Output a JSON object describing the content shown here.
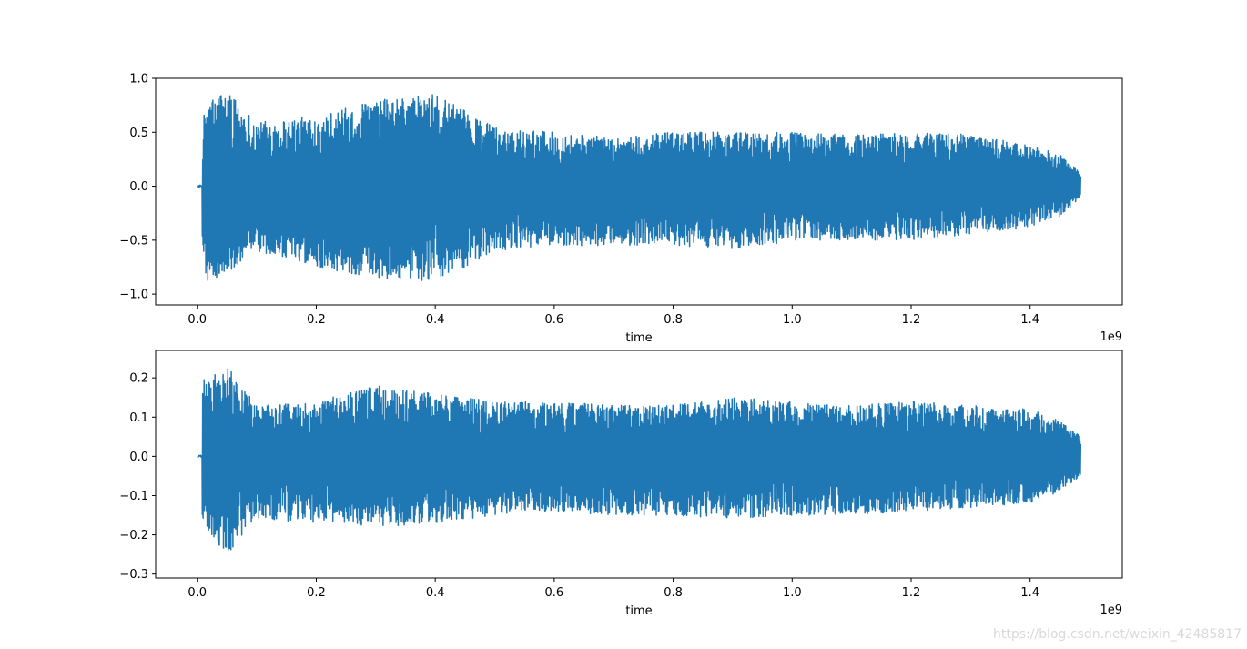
{
  "chart_data": [
    {
      "type": "line",
      "title": "",
      "xlabel": "time",
      "ylabel": "",
      "x_offset_label": "1e9",
      "xlim": [
        -0.07,
        1.555
      ],
      "ylim": [
        -1.1,
        1.0
      ],
      "x_ticks": [
        0.0,
        0.2,
        0.4,
        0.6,
        0.8,
        1.0,
        1.2,
        1.4
      ],
      "x_tick_labels": [
        "0.0",
        "0.2",
        "0.4",
        "0.6",
        "0.8",
        "1.0",
        "1.2",
        "1.4"
      ],
      "y_ticks": [
        -1.0,
        -0.5,
        0.0,
        0.5,
        1.0
      ],
      "y_tick_labels": [
        "−1.0",
        "−0.5",
        "0.0",
        "0.5",
        "1.0"
      ],
      "line_color": "#1f77b4",
      "grid": false,
      "series": [
        {
          "x_range": [
            0.0,
            1.485
          ],
          "onset": 0.008,
          "envelope": {
            "x": [
              0.0,
              0.007,
              0.02,
              0.05,
              0.1,
              0.2,
              0.3,
              0.4,
              0.45,
              0.5,
              0.6,
              0.7,
              0.8,
              0.9,
              1.0,
              1.1,
              1.2,
              1.3,
              1.4,
              1.45,
              1.485
            ],
            "upper": [
              0.01,
              0.6,
              0.8,
              0.9,
              0.6,
              0.65,
              0.8,
              0.85,
              0.7,
              0.55,
              0.5,
              0.45,
              0.5,
              0.5,
              0.5,
              0.48,
              0.5,
              0.48,
              0.38,
              0.3,
              0.12
            ],
            "lower": [
              -0.01,
              -0.65,
              -0.95,
              -0.8,
              -0.6,
              -0.75,
              -0.85,
              -0.9,
              -0.75,
              -0.6,
              -0.55,
              -0.55,
              -0.55,
              -0.58,
              -0.52,
              -0.5,
              -0.5,
              -0.45,
              -0.38,
              -0.28,
              -0.12
            ]
          }
        }
      ]
    },
    {
      "type": "line",
      "title": "",
      "xlabel": "time",
      "ylabel": "",
      "x_offset_label": "1e9",
      "xlim": [
        -0.07,
        1.555
      ],
      "ylim": [
        -0.31,
        0.27
      ],
      "x_ticks": [
        0.0,
        0.2,
        0.4,
        0.6,
        0.8,
        1.0,
        1.2,
        1.4
      ],
      "x_tick_labels": [
        "0.0",
        "0.2",
        "0.4",
        "0.6",
        "0.8",
        "1.0",
        "1.2",
        "1.4"
      ],
      "y_ticks": [
        -0.3,
        -0.2,
        -0.1,
        0.0,
        0.1,
        0.2
      ],
      "y_tick_labels": [
        "−0.3",
        "−0.2",
        "−0.1",
        "0.0",
        "0.1",
        "0.2"
      ],
      "line_color": "#1f77b4",
      "grid": false,
      "series": [
        {
          "x_range": [
            0.0,
            1.485
          ],
          "onset": 0.008,
          "envelope": {
            "x": [
              0.0,
              0.007,
              0.02,
              0.05,
              0.1,
              0.2,
              0.3,
              0.4,
              0.5,
              0.6,
              0.7,
              0.8,
              0.9,
              1.0,
              1.1,
              1.2,
              1.3,
              1.4,
              1.45,
              1.485
            ],
            "upper": [
              0.003,
              0.2,
              0.2,
              0.23,
              0.13,
              0.14,
              0.18,
              0.16,
              0.14,
              0.14,
              0.13,
              0.13,
              0.15,
              0.14,
              0.13,
              0.14,
              0.13,
              0.12,
              0.09,
              0.05
            ],
            "lower": [
              -0.003,
              -0.15,
              -0.2,
              -0.25,
              -0.16,
              -0.17,
              -0.18,
              -0.17,
              -0.15,
              -0.14,
              -0.15,
              -0.15,
              -0.16,
              -0.15,
              -0.15,
              -0.14,
              -0.13,
              -0.12,
              -0.09,
              -0.05
            ]
          }
        }
      ]
    }
  ],
  "watermark": "https://blog.csdn.net/weixin_42485817"
}
